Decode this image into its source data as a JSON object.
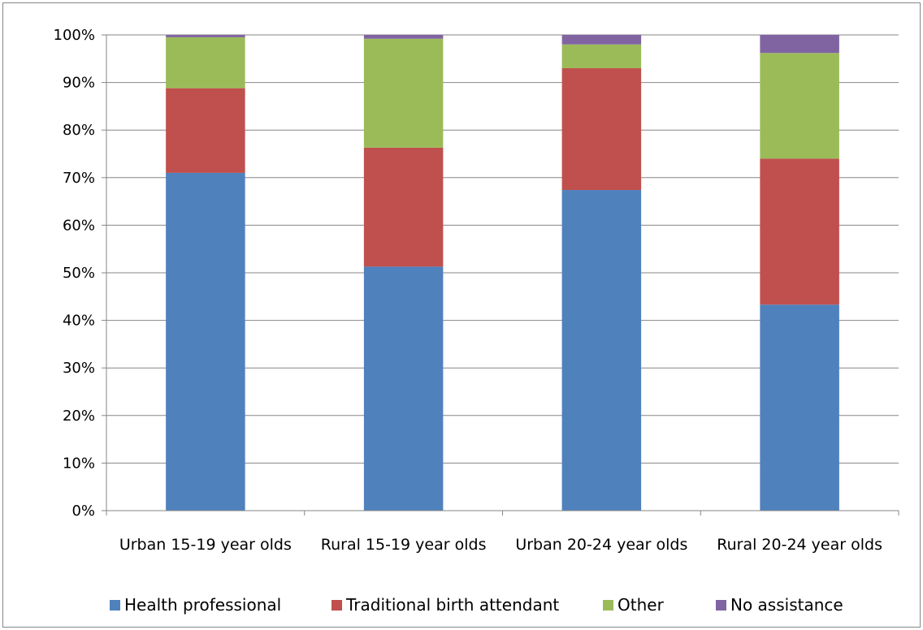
{
  "chart_data": {
    "type": "bar",
    "stacked": true,
    "normalized": true,
    "categories": [
      "Urban 15-19 year olds",
      "Rural 15-19 year olds",
      "Urban 20-24 year olds",
      "Rural 20-24 year olds"
    ],
    "series": [
      {
        "name": "Health professional",
        "color": "#4F81BD",
        "values": [
          71.0,
          51.3,
          67.4,
          43.3
        ]
      },
      {
        "name": "Traditional birth attendant",
        "color": "#C0504D",
        "values": [
          17.8,
          25.0,
          25.6,
          30.7
        ]
      },
      {
        "name": "Other",
        "color": "#9BBB59",
        "values": [
          10.7,
          22.9,
          5.0,
          22.2
        ]
      },
      {
        "name": "No assistance",
        "color": "#8064A2",
        "values": [
          0.5,
          0.8,
          2.0,
          3.8
        ]
      }
    ],
    "yticks": [
      "0%",
      "10%",
      "20%",
      "30%",
      "40%",
      "50%",
      "60%",
      "70%",
      "80%",
      "90%",
      "100%"
    ],
    "ylim": [
      0,
      100
    ],
    "grid": true,
    "legend_position": "bottom"
  }
}
